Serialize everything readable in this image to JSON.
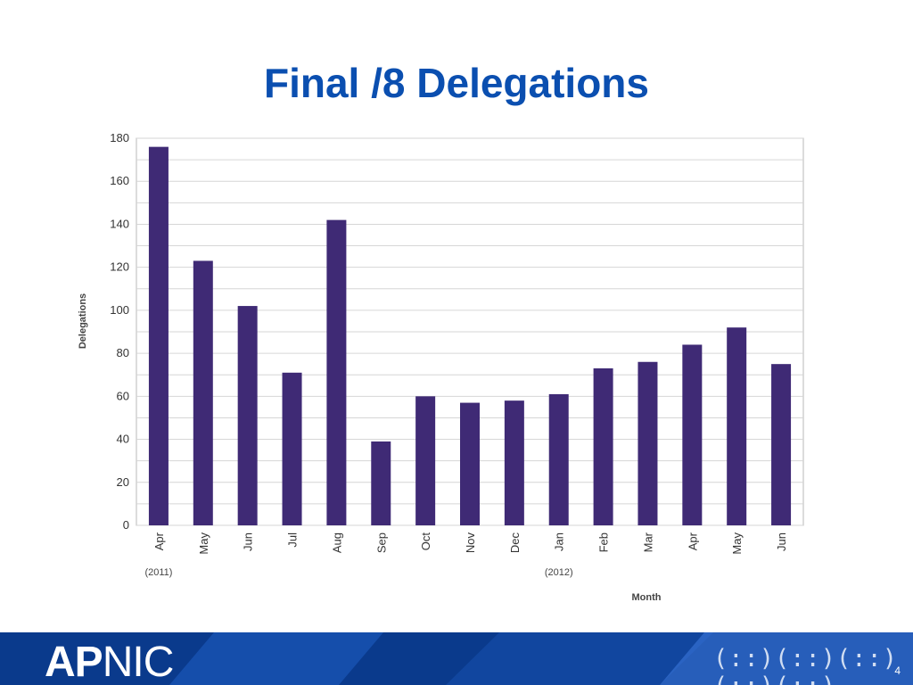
{
  "slide": {
    "title": "Final /8 Delegations",
    "page_number": "4"
  },
  "footer": {
    "logo_ap": "AP",
    "logo_nic": "NIC",
    "tagline_glyphs": "(::)(::)(::)(::)(::)"
  },
  "colors": {
    "title": "#0b4fb0",
    "bar": "#3f2a75",
    "footer_dark": "#0a3a8c",
    "footer_mid": "#1f5fc4",
    "footer_light": "#3f7be0"
  },
  "chart_data": {
    "type": "bar",
    "title": "",
    "xlabel": "Month",
    "ylabel": "Delegations",
    "ylim": [
      0,
      180
    ],
    "yticks": [
      0,
      20,
      40,
      60,
      80,
      100,
      120,
      140,
      160,
      180
    ],
    "grid": true,
    "categories": [
      "Apr",
      "May",
      "Jun",
      "Jul",
      "Aug",
      "Sep",
      "Oct",
      "Nov",
      "Dec",
      "Jan",
      "Feb",
      "Mar",
      "Apr",
      "May",
      "Jun"
    ],
    "values": [
      176,
      123,
      102,
      71,
      142,
      39,
      60,
      57,
      58,
      61,
      73,
      76,
      84,
      92,
      75
    ],
    "year_labels": [
      {
        "text": "(2011)",
        "category_index": 0
      },
      {
        "text": "(2012)",
        "category_index": 9
      }
    ]
  }
}
